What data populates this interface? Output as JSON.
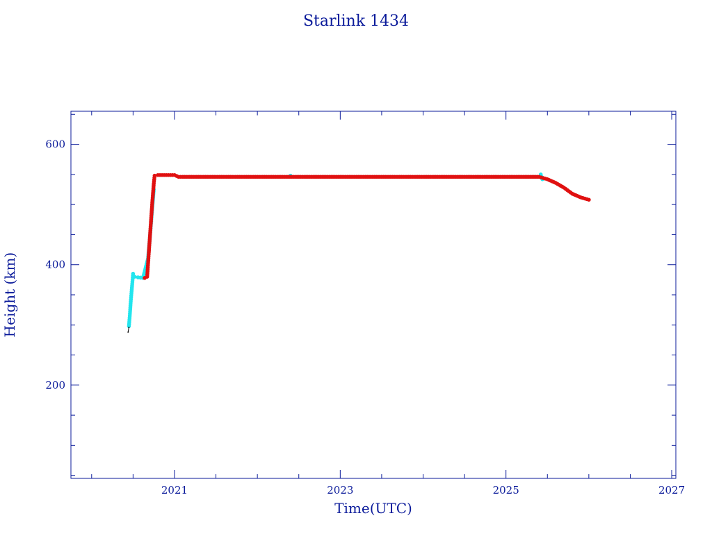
{
  "chart_data": {
    "type": "scatter",
    "title": "Starlink 1434",
    "xlabel": "Time(UTC)",
    "ylabel": "Height (km)",
    "xlim": [
      2019.75,
      2027.05
    ],
    "ylim": [
      45,
      655
    ],
    "x_major_ticks": [
      2021,
      2023,
      2025,
      2027
    ],
    "x_minor_step": 0.5,
    "y_major_ticks": [
      200,
      400,
      600
    ],
    "y_minor_step": 50,
    "grid": false,
    "colors": {
      "axes": "#0a1a9a",
      "text": "#0a1a9a",
      "series_cyan": "#22e5ee",
      "series_red": "#e01010",
      "series_black": "#000000"
    },
    "series": [
      {
        "color": "cyan",
        "x": [
          2020.45,
          2020.46,
          2020.47,
          2020.48,
          2020.49,
          2020.5,
          2020.52,
          2020.56,
          2020.62,
          2020.68,
          2020.7,
          2020.72,
          2020.75,
          2022.4,
          2025.42,
          2025.44
        ],
        "y": [
          298,
          315,
          335,
          352,
          368,
          385,
          380,
          379,
          378,
          410,
          440,
          475,
          525,
          548,
          550,
          542
        ]
      },
      {
        "color": "red",
        "x": [
          2020.64,
          2020.67,
          2020.69,
          2020.71,
          2020.73,
          2020.75,
          2020.76,
          2020.8,
          2020.9,
          2021.0,
          2021.05,
          2021.1,
          2021.5,
          2022.0,
          2022.5,
          2023.0,
          2023.5,
          2024.0,
          2024.5,
          2025.0,
          2025.4,
          2025.5,
          2025.6,
          2025.7,
          2025.8,
          2025.9,
          2026.0
        ],
        "y": [
          378,
          380,
          420,
          460,
          500,
          535,
          548,
          549,
          549,
          549,
          546,
          546,
          546,
          546,
          546,
          546,
          546,
          546,
          546,
          546,
          546,
          542,
          536,
          528,
          518,
          512,
          508
        ]
      },
      {
        "color": "black",
        "x": [
          2020.44,
          2020.45
        ],
        "y": [
          288,
          296
        ]
      }
    ]
  }
}
